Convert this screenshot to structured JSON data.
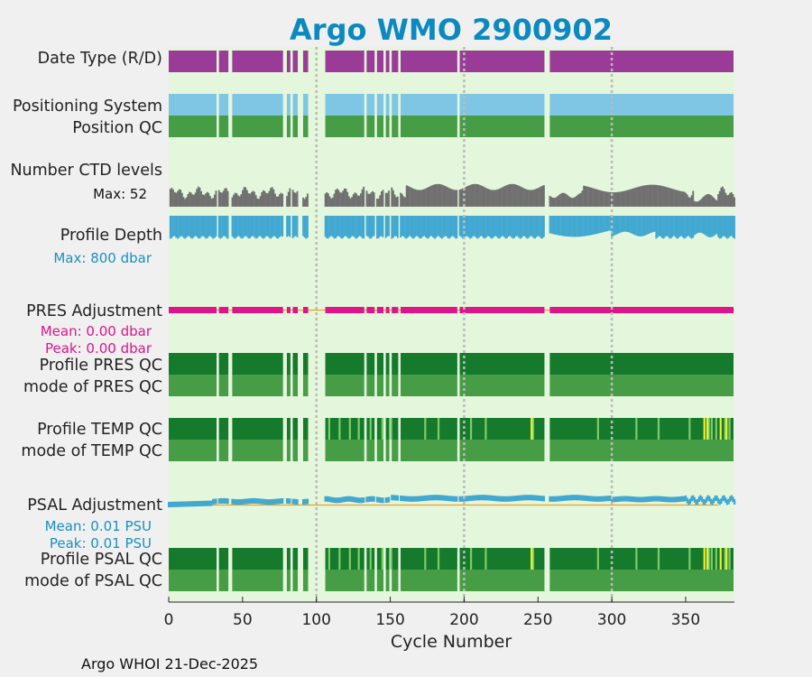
{
  "chart_data": {
    "type": "multi-track strip chart",
    "title": "Argo WMO 2900902",
    "xlabel": "Cycle Number",
    "xlim": [
      0,
      383
    ],
    "xticks": [
      "0",
      "50",
      "100",
      "150",
      "200",
      "250",
      "300",
      "350"
    ],
    "xtick_values": [
      0,
      50,
      100,
      150,
      200,
      250,
      300,
      350
    ],
    "vgrid_at": [
      100,
      200,
      300
    ],
    "gaps": [
      [
        33,
        34
      ],
      [
        41,
        43
      ],
      [
        78,
        80
      ],
      [
        83,
        84
      ],
      [
        88,
        91
      ],
      [
        95,
        106
      ],
      [
        133,
        134
      ],
      [
        140,
        141
      ],
      [
        146,
        147
      ],
      [
        150,
        151
      ],
      [
        156,
        157
      ],
      [
        196,
        197
      ],
      [
        255,
        258
      ]
    ],
    "rows": {
      "date_type": "Date Type (R/D)",
      "positioning_system": "Positioning System",
      "position_qc": "Position QC",
      "ctd_levels": "Number CTD levels",
      "profile_depth": "Profile Depth",
      "pres_adjustment": "PRES Adjustment",
      "profile_pres_qc": "Profile PRES QC",
      "mode_pres_qc": "mode of PRES QC",
      "profile_temp_qc": "Profile TEMP QC",
      "mode_temp_qc": "mode of TEMP QC",
      "psal_adjustment": "PSAL Adjustment",
      "profile_psal_qc": "Profile PSAL QC",
      "mode_psal_qc": "mode of PSAL QC"
    },
    "ctd_max": "Max: 52",
    "depth_max": "Max:  800 dbar",
    "pres_mean": "Mean: 0.00 dbar",
    "pres_peak": "Peak: 0.00 dbar",
    "psal_mean": "Mean: 0.01 PSU",
    "psal_peak": "Peak: 0.01 PSU",
    "colors": {
      "date_type": "#9a3b98",
      "positioning": "#7ec6e3",
      "qc_light": "#479c46",
      "qc_dark": "#157a2b",
      "ctd": "#707070",
      "depth": "#42a8d1",
      "pres": "#e0148a",
      "psal": "#42a8d1",
      "zero_line": "#f0a020",
      "panel_bg": "#e4f7dc",
      "yellow_flag": "#eeee33",
      "title": "#0a8ac0"
    }
  },
  "footer": "Argo WHOI 21-Dec-2025"
}
